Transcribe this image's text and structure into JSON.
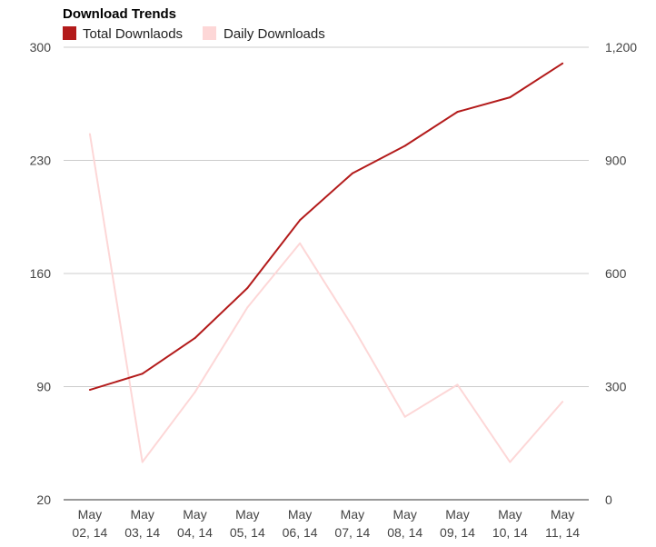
{
  "chart_data": {
    "type": "line",
    "title": "Download Trends",
    "categories": [
      "May 02, 14",
      "May 03, 14",
      "May 04, 14",
      "May 05, 14",
      "May 06, 14",
      "May 07, 14",
      "May 08, 14",
      "May 09, 14",
      "May 10, 14",
      "May 11, 14"
    ],
    "x_tick_lines": [
      [
        "May",
        "02, 14"
      ],
      [
        "May",
        "03, 14"
      ],
      [
        "May",
        "04, 14"
      ],
      [
        "May",
        "05, 14"
      ],
      [
        "May",
        "06, 14"
      ],
      [
        "May",
        "07, 14"
      ],
      [
        "May",
        "08, 14"
      ],
      [
        "May",
        "09, 14"
      ],
      [
        "May",
        "10, 14"
      ],
      [
        "May",
        "11, 14"
      ]
    ],
    "left_axis": {
      "ylim": [
        20,
        300
      ],
      "ticks": [
        20,
        90,
        160,
        230,
        300
      ],
      "tick_labels": [
        "20",
        "90",
        "160",
        "230",
        "300"
      ]
    },
    "right_axis": {
      "ylim": [
        0,
        1200
      ],
      "ticks": [
        0,
        300,
        600,
        900,
        1200
      ],
      "tick_labels": [
        "0",
        "300",
        "600",
        "900",
        "1,200"
      ]
    },
    "series": [
      {
        "name": "Total Downlaods",
        "axis": "left",
        "color": "#b31b1b",
        "values": [
          88,
          98,
          120,
          151,
          193,
          222,
          239,
          260,
          269,
          290
        ]
      },
      {
        "name": "Daily Downloads",
        "axis": "right",
        "color": "#fdd7d7",
        "values": [
          970,
          100,
          285,
          510,
          680,
          460,
          220,
          305,
          100,
          260
        ]
      }
    ],
    "legend_position": "top-left",
    "grid": true
  }
}
